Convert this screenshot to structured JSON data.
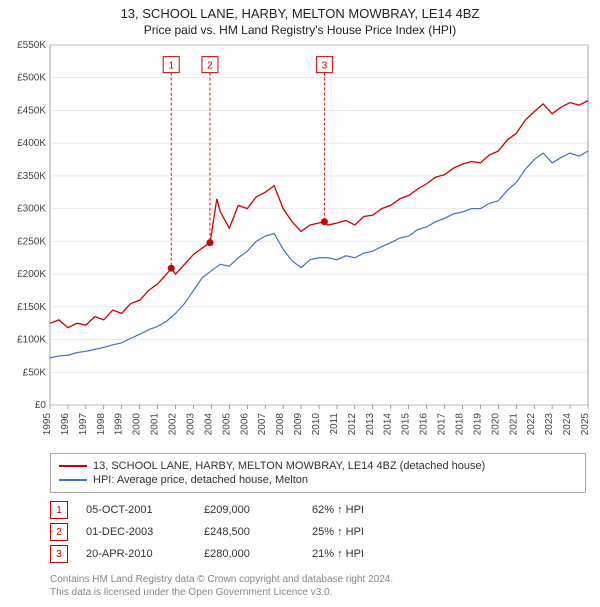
{
  "title_line1": "13, SCHOOL LANE, HARBY, MELTON MOWBRAY, LE14 4BZ",
  "title_line2": "Price paid vs. HM Land Registry's House Price Index (HPI)",
  "chart": {
    "background_color": "#ffffff",
    "grid_color": "#dddddd",
    "axis_color": "#666666",
    "tick_fontsize": 10,
    "tick_color": "#444444",
    "ylim": [
      0,
      550
    ],
    "ytick_step": 50,
    "y_prefix": "£",
    "y_suffix": "K",
    "xlim": [
      1995,
      2025
    ],
    "xtick_step": 1,
    "series": [
      {
        "key": "property",
        "label": "13, SCHOOL LANE, HARBY, MELTON MOWBRAY, LE14 4BZ (detached house)",
        "color": "#cc0000",
        "line_width": 1.3,
        "data": [
          [
            1995,
            125
          ],
          [
            1995.5,
            130
          ],
          [
            1996,
            118
          ],
          [
            1996.5,
            125
          ],
          [
            1997,
            122
          ],
          [
            1997.5,
            135
          ],
          [
            1998,
            130
          ],
          [
            1998.5,
            145
          ],
          [
            1999,
            140
          ],
          [
            1999.5,
            155
          ],
          [
            2000,
            160
          ],
          [
            2000.5,
            175
          ],
          [
            2001,
            185
          ],
          [
            2001.5,
            200
          ],
          [
            2001.76,
            209
          ],
          [
            2002,
            200
          ],
          [
            2002.5,
            215
          ],
          [
            2003,
            230
          ],
          [
            2003.5,
            240
          ],
          [
            2003.92,
            248
          ],
          [
            2004,
            260
          ],
          [
            2004.3,
            315
          ],
          [
            2004.5,
            295
          ],
          [
            2005,
            270
          ],
          [
            2005.5,
            305
          ],
          [
            2006,
            300
          ],
          [
            2006.5,
            318
          ],
          [
            2007,
            325
          ],
          [
            2007.5,
            335
          ],
          [
            2008,
            300
          ],
          [
            2008.5,
            280
          ],
          [
            2009,
            265
          ],
          [
            2009.5,
            275
          ],
          [
            2010,
            278
          ],
          [
            2010.3,
            280
          ],
          [
            2010.5,
            275
          ],
          [
            2011,
            278
          ],
          [
            2011.5,
            282
          ],
          [
            2012,
            275
          ],
          [
            2012.5,
            288
          ],
          [
            2013,
            290
          ],
          [
            2013.5,
            300
          ],
          [
            2014,
            305
          ],
          [
            2014.5,
            315
          ],
          [
            2015,
            320
          ],
          [
            2015.5,
            330
          ],
          [
            2016,
            338
          ],
          [
            2016.5,
            348
          ],
          [
            2017,
            352
          ],
          [
            2017.5,
            362
          ],
          [
            2018,
            368
          ],
          [
            2018.5,
            372
          ],
          [
            2019,
            370
          ],
          [
            2019.5,
            382
          ],
          [
            2020,
            388
          ],
          [
            2020.5,
            405
          ],
          [
            2021,
            415
          ],
          [
            2021.5,
            435
          ],
          [
            2022,
            448
          ],
          [
            2022.5,
            460
          ],
          [
            2023,
            445
          ],
          [
            2023.5,
            455
          ],
          [
            2024,
            462
          ],
          [
            2024.5,
            458
          ],
          [
            2025,
            465
          ]
        ]
      },
      {
        "key": "hpi",
        "label": "HPI: Average price, detached house, Melton",
        "color": "#4472c4",
        "line_width": 1.2,
        "data": [
          [
            1995,
            72
          ],
          [
            1995.5,
            75
          ],
          [
            1996,
            76
          ],
          [
            1996.5,
            80
          ],
          [
            1997,
            82
          ],
          [
            1997.5,
            85
          ],
          [
            1998,
            88
          ],
          [
            1998.5,
            92
          ],
          [
            1999,
            95
          ],
          [
            1999.5,
            102
          ],
          [
            2000,
            108
          ],
          [
            2000.5,
            115
          ],
          [
            2001,
            120
          ],
          [
            2001.5,
            128
          ],
          [
            2002,
            140
          ],
          [
            2002.5,
            155
          ],
          [
            2003,
            175
          ],
          [
            2003.5,
            195
          ],
          [
            2004,
            205
          ],
          [
            2004.5,
            215
          ],
          [
            2005,
            212
          ],
          [
            2005.5,
            225
          ],
          [
            2006,
            235
          ],
          [
            2006.5,
            250
          ],
          [
            2007,
            258
          ],
          [
            2007.5,
            262
          ],
          [
            2008,
            238
          ],
          [
            2008.5,
            220
          ],
          [
            2009,
            210
          ],
          [
            2009.5,
            222
          ],
          [
            2010,
            225
          ],
          [
            2010.5,
            225
          ],
          [
            2011,
            222
          ],
          [
            2011.5,
            228
          ],
          [
            2012,
            225
          ],
          [
            2012.5,
            232
          ],
          [
            2013,
            235
          ],
          [
            2013.5,
            242
          ],
          [
            2014,
            248
          ],
          [
            2014.5,
            255
          ],
          [
            2015,
            258
          ],
          [
            2015.5,
            268
          ],
          [
            2016,
            272
          ],
          [
            2016.5,
            280
          ],
          [
            2017,
            285
          ],
          [
            2017.5,
            292
          ],
          [
            2018,
            295
          ],
          [
            2018.5,
            300
          ],
          [
            2019,
            300
          ],
          [
            2019.5,
            308
          ],
          [
            2020,
            312
          ],
          [
            2020.5,
            328
          ],
          [
            2021,
            340
          ],
          [
            2021.5,
            360
          ],
          [
            2022,
            375
          ],
          [
            2022.5,
            385
          ],
          [
            2023,
            370
          ],
          [
            2023.5,
            378
          ],
          [
            2024,
            385
          ],
          [
            2024.5,
            380
          ],
          [
            2025,
            388
          ]
        ]
      }
    ],
    "markers": [
      {
        "n": "1",
        "x": 2001.76,
        "y": 209,
        "box_y": 520,
        "color": "#cc0000"
      },
      {
        "n": "2",
        "x": 2003.92,
        "y": 248,
        "box_y": 520,
        "color": "#cc0000"
      },
      {
        "n": "3",
        "x": 2010.3,
        "y": 280,
        "box_y": 520,
        "color": "#cc0000"
      }
    ]
  },
  "legend": [
    {
      "color": "#cc0000",
      "label": "13, SCHOOL LANE, HARBY, MELTON MOWBRAY, LE14 4BZ (detached house)"
    },
    {
      "color": "#4472c4",
      "label": "HPI: Average price, detached house, Melton"
    }
  ],
  "sales": [
    {
      "n": "1",
      "date": "05-OCT-2001",
      "price": "£209,000",
      "pct": "62% ↑ HPI",
      "color": "#cc0000"
    },
    {
      "n": "2",
      "date": "01-DEC-2003",
      "price": "£248,500",
      "pct": "25% ↑ HPI",
      "color": "#cc0000"
    },
    {
      "n": "3",
      "date": "20-APR-2010",
      "price": "£280,000",
      "pct": "21% ↑ HPI",
      "color": "#cc0000"
    }
  ],
  "footer_line1": "Contains HM Land Registry data © Crown copyright and database right 2024.",
  "footer_line2": "This data is licensed under the Open Government Licence v3.0."
}
